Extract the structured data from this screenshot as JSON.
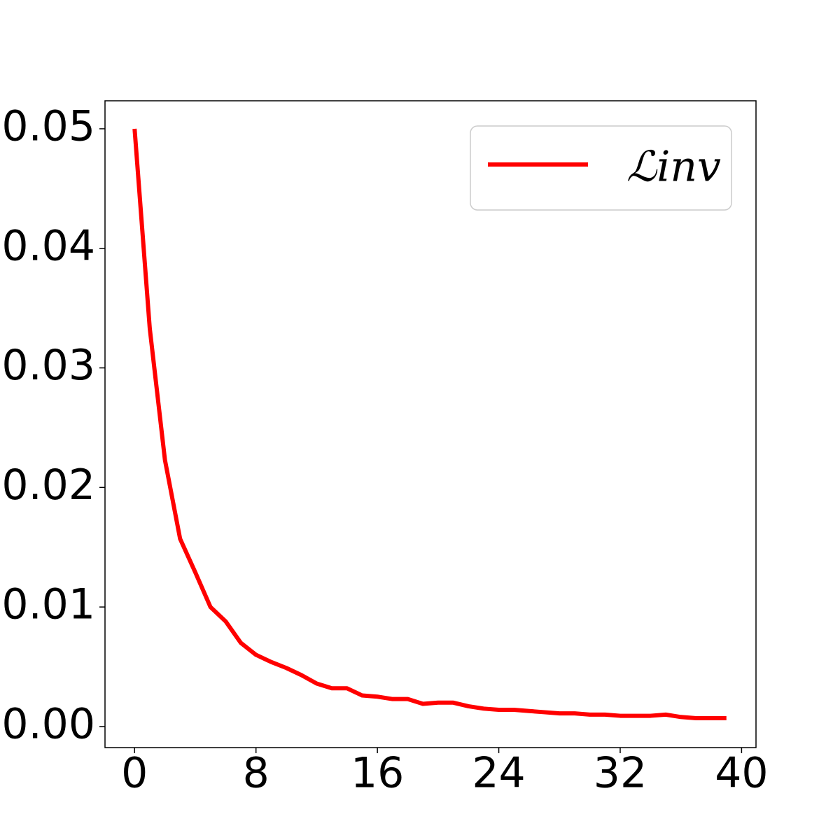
{
  "chart_data": {
    "type": "line",
    "x": [
      0,
      1,
      2,
      3,
      4,
      5,
      6,
      7,
      8,
      9,
      10,
      11,
      12,
      13,
      14,
      15,
      16,
      17,
      18,
      19,
      20,
      21,
      22,
      23,
      24,
      25,
      26,
      27,
      28,
      29,
      30,
      31,
      32,
      33,
      34,
      35,
      36,
      37,
      38,
      39
    ],
    "series": [
      {
        "name": "ℒinv",
        "color": "#ff0000",
        "values": [
          0.05,
          0.0333,
          0.0223,
          0.0157,
          0.0129,
          0.01,
          0.0088,
          0.007,
          0.006,
          0.0054,
          0.0049,
          0.0043,
          0.0036,
          0.0032,
          0.0032,
          0.0026,
          0.0025,
          0.0023,
          0.0023,
          0.0019,
          0.002,
          0.002,
          0.0017,
          0.0015,
          0.0014,
          0.0014,
          0.0013,
          0.0012,
          0.0011,
          0.0011,
          0.001,
          0.001,
          0.0009,
          0.0009,
          0.0009,
          0.001,
          0.0008,
          0.0007,
          0.0007,
          0.0007
        ]
      }
    ],
    "xlim": [
      -1.95,
      40.95
    ],
    "xticks": [
      0,
      8,
      16,
      24,
      32,
      40
    ],
    "ylim": [
      -0.00176,
      0.05234
    ],
    "yticks": [
      {
        "value": 0,
        "label": "0.00"
      },
      0.01,
      0.02,
      0.03,
      0.04,
      0.05
    ],
    "legend": "upper right"
  }
}
